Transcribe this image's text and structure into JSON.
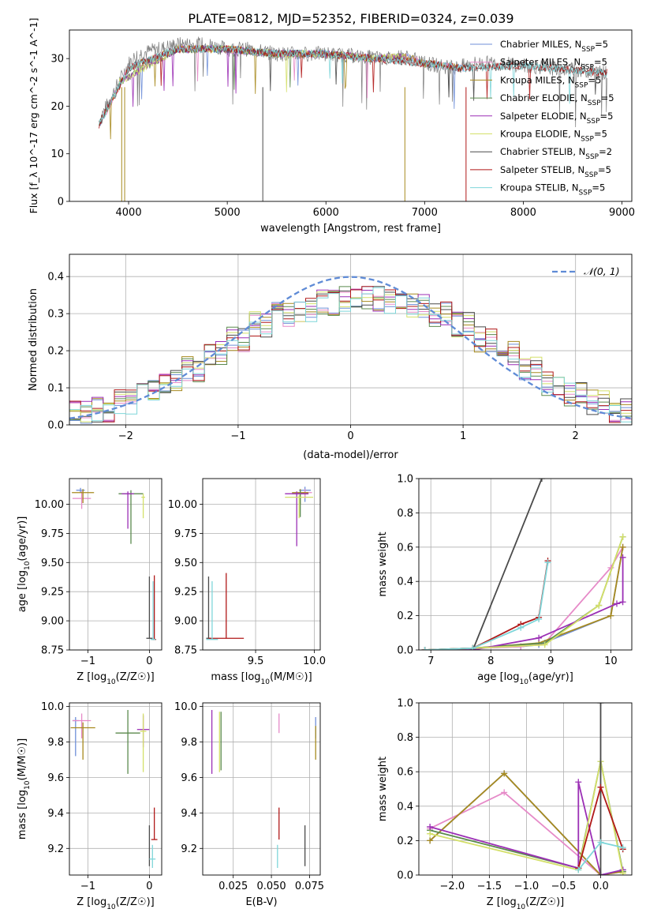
{
  "figure": {
    "title": "PLATE=0812, MJD=52352, FIBERID=0324, z=0.039"
  },
  "colors": [
    "#6f8fd8",
    "#e68ac8",
    "#a78a1e",
    "#5b8a4e",
    "#9b2fb5",
    "#d4e06a",
    "#4a4a4a",
    "#b01818",
    "#7fd6d9"
  ],
  "chart_data": [
    {
      "id": "spectrum",
      "type": "line",
      "title": "PLATE=0812, MJD=52352, FIBERID=0324, z=0.039",
      "xlabel": "wavelength [Angstrom, rest frame]",
      "ylabel": "Flux [f_λ 10^-17 erg cm^-2 s^-1 A^-1]",
      "xlim": [
        3400,
        9100
      ],
      "ylim": [
        0,
        36
      ],
      "xticks": [
        4000,
        5000,
        6000,
        7000,
        8000,
        9000
      ],
      "yticks": [
        0,
        10,
        20,
        30
      ],
      "grid": false,
      "legend_position": "top-right",
      "data_line": {
        "x": [
          3700,
          3800,
          3900,
          4000,
          4100,
          4300,
          4500,
          4800,
          5000,
          5200,
          5500,
          5800,
          6000,
          6300,
          6600,
          6800,
          7000,
          7300,
          7500,
          7800,
          8000,
          8300,
          8600,
          8850
        ],
        "y": [
          17,
          21,
          25,
          29,
          31,
          32,
          33,
          33,
          32,
          32,
          31,
          31,
          31,
          30.5,
          30,
          30.5,
          29,
          28,
          29,
          29,
          28.5,
          28,
          27.5,
          27
        ]
      },
      "series": [
        {
          "name": "Chabrier MILES, N_SSP=5",
          "legend_main": "Chabrier MILES, N",
          "legend_sub": "SSP",
          "legend_tail": "=5",
          "x": [
            3700,
            4000,
            4500,
            5000,
            5500,
            6000,
            6500,
            6800,
            7000,
            7400
          ],
          "y": [
            16,
            28,
            32,
            32,
            31,
            31,
            30,
            30.5,
            29,
            28
          ]
        },
        {
          "name": "Salpeter MILES, N_SSP=5",
          "legend_main": "Salpeter MILES, N",
          "legend_sub": "SSP",
          "legend_tail": "=5",
          "x": [
            3700,
            4000,
            4500,
            5000,
            5500,
            6000,
            6500,
            6800,
            7000,
            7400
          ],
          "y": [
            16,
            28,
            32,
            32,
            31,
            31,
            30,
            30.5,
            29,
            28
          ]
        },
        {
          "name": "Kroupa MILES, N_SSP=5",
          "legend_main": "Kroupa MILES, N",
          "legend_sub": "SSP",
          "legend_tail": "=5",
          "x": [
            3700,
            4000,
            4500,
            5000,
            5500,
            6000,
            6500,
            6800,
            7000,
            7400
          ],
          "y": [
            16,
            28,
            32,
            32,
            31,
            31,
            30,
            30.5,
            29,
            28
          ]
        },
        {
          "name": "Chabrier ELODIE, N_SSP=5",
          "legend_main": "Chabrier ELODIE, N",
          "legend_sub": "SSP",
          "legend_tail": "=5",
          "x": [
            3900,
            4500,
            5000,
            5500,
            6000,
            6500,
            6800
          ],
          "y": [
            25,
            32,
            32,
            31,
            31,
            30,
            30.5
          ]
        },
        {
          "name": "Salpeter ELODIE, N_SSP=5",
          "legend_main": "Salpeter ELODIE, N",
          "legend_sub": "SSP",
          "legend_tail": "=5",
          "x": [
            3900,
            4500,
            5000,
            5500,
            6000,
            6500,
            6800
          ],
          "y": [
            25,
            32,
            32,
            31,
            31,
            30,
            30.5
          ]
        },
        {
          "name": "Kroupa ELODIE, N_SSP=5",
          "legend_main": "Kroupa ELODIE, N",
          "legend_sub": "SSP",
          "legend_tail": "=5",
          "x": [
            3900,
            4500,
            5000,
            5500,
            6000,
            6500,
            6800
          ],
          "y": [
            25,
            32,
            32,
            31,
            31,
            30,
            30.5
          ]
        },
        {
          "name": "Chabrier STELIB, N_SSP=2",
          "legend_main": "Chabrier STELIB, N",
          "legend_sub": "SSP",
          "legend_tail": "=2",
          "x": [
            3700,
            4000,
            4500,
            5000,
            5500,
            6000,
            6500,
            7000,
            7400,
            8000,
            8850
          ],
          "y": [
            16,
            28,
            32,
            32,
            31,
            31,
            30,
            29,
            28,
            28.5,
            27
          ]
        },
        {
          "name": "Salpeter STELIB, N_SSP=5",
          "legend_main": "Salpeter STELIB, N",
          "legend_sub": "SSP",
          "legend_tail": "=5",
          "x": [
            3700,
            4000,
            4500,
            5000,
            5500,
            6000,
            6500,
            7000,
            7400,
            8000,
            8850
          ],
          "y": [
            16,
            28,
            32,
            32,
            31,
            31,
            30,
            29,
            28,
            28.5,
            27
          ]
        },
        {
          "name": "Kroupa STELIB, N_SSP=5",
          "legend_main": "Kroupa STELIB, N",
          "legend_sub": "SSP",
          "legend_tail": "=5",
          "x": [
            3700,
            4000,
            4500,
            5000,
            5500,
            6000,
            6500,
            7000,
            7400,
            8000,
            8850
          ],
          "y": [
            16,
            28,
            32,
            32,
            31,
            31,
            30,
            29,
            28,
            28.5,
            27
          ]
        }
      ]
    },
    {
      "id": "residuals",
      "type": "line",
      "xlabel": "(data-model)/error",
      "ylabel": "Normed distribution",
      "xlim": [
        -2.5,
        2.5
      ],
      "ylim": [
        0,
        0.46
      ],
      "xticks": [
        -2,
        -1,
        0,
        1,
        2
      ],
      "yticks": [
        0.0,
        0.1,
        0.2,
        0.3,
        0.4
      ],
      "grid": true,
      "legend_position": "top-right",
      "legend": "𝒩(0, 1)",
      "bins_x": [
        -2.5,
        -2.3,
        -2.1,
        -1.9,
        -1.7,
        -1.5,
        -1.3,
        -1.1,
        -0.9,
        -0.7,
        -0.5,
        -0.3,
        -0.1,
        0.1,
        0.3,
        0.5,
        0.7,
        0.9,
        1.1,
        1.3,
        1.5,
        1.7,
        1.9,
        2.1,
        2.3,
        2.5
      ],
      "hist_values": [
        0.03,
        0.04,
        0.06,
        0.09,
        0.12,
        0.15,
        0.19,
        0.23,
        0.27,
        0.3,
        0.31,
        0.33,
        0.34,
        0.34,
        0.33,
        0.32,
        0.3,
        0.27,
        0.23,
        0.19,
        0.15,
        0.11,
        0.08,
        0.06,
        0.04
      ],
      "gaussian": {
        "mu": 0,
        "sigma": 1
      }
    },
    {
      "id": "age_vs_Z",
      "type": "scatter",
      "xlabel": "Z [log10(Z/Z☉)]",
      "ylabel": "age  [log10(age/yr)]",
      "xlim": [
        -1.3,
        0.2
      ],
      "ylim": [
        8.75,
        10.22
      ],
      "xticks": [
        -1,
        0
      ],
      "yticks": [
        8.75,
        9.0,
        9.25,
        9.5,
        9.75,
        10.0
      ],
      "grid": true,
      "points": [
        {
          "x": -1.12,
          "y": 10.12,
          "xerr": 0.07,
          "yerr_lo": 0.02,
          "yerr_hi": 0.02
        },
        {
          "x": -1.1,
          "y": 10.05,
          "xerr": 0.15,
          "yerr_lo": 0.09,
          "yerr_hi": 0.06
        },
        {
          "x": -1.08,
          "y": 10.1,
          "xerr": 0.18,
          "yerr_lo": 0.09,
          "yerr_hi": 0.03
        },
        {
          "x": -0.3,
          "y": 10.09,
          "xerr": 0.2,
          "yerr_lo": 0.43,
          "yerr_hi": 0.03
        },
        {
          "x": -0.35,
          "y": 10.09,
          "xerr": 0.1,
          "yerr_lo": 0.3,
          "yerr_hi": 0.02
        },
        {
          "x": -0.1,
          "y": 10.06,
          "xerr": 0.03,
          "yerr_lo": 0.18,
          "yerr_hi": 0.03
        },
        {
          "x": 0.0,
          "y": 8.85,
          "xerr": 0.05,
          "yerr_lo": 0.0,
          "yerr_hi": 0.53
        },
        {
          "x": 0.08,
          "y": 8.84,
          "xerr": 0.03,
          "yerr_lo": 0.0,
          "yerr_hi": 0.55
        },
        {
          "x": 0.06,
          "y": 8.84,
          "xerr": 0.04,
          "yerr_lo": 0.0,
          "yerr_hi": 0.5
        }
      ]
    },
    {
      "id": "age_vs_mass",
      "type": "scatter",
      "xlabel": "mass [log10(M/M☉)]",
      "ylabel": "",
      "xlim": [
        9.05,
        10.05
      ],
      "ylim": [
        8.75,
        10.22
      ],
      "xticks": [
        9.5,
        10.0
      ],
      "yticks": [
        8.75,
        9.0,
        9.25,
        9.5,
        9.75,
        10.0
      ],
      "grid": true,
      "points": [
        {
          "x": 9.92,
          "y": 10.12,
          "xerr": 0.05,
          "yerr_lo": 0.1,
          "yerr_hi": 0.03
        },
        {
          "x": 9.92,
          "y": 10.1,
          "xerr": 0.06,
          "yerr_lo": 0.05,
          "yerr_hi": 0.03
        },
        {
          "x": 9.88,
          "y": 10.1,
          "xerr": 0.07,
          "yerr_lo": 0.1,
          "yerr_hi": 0.03
        },
        {
          "x": 9.88,
          "y": 10.09,
          "xerr": 0.07,
          "yerr_lo": 0.2,
          "yerr_hi": 0.03
        },
        {
          "x": 9.85,
          "y": 10.09,
          "xerr": 0.1,
          "yerr_lo": 0.45,
          "yerr_hi": 0.02
        },
        {
          "x": 9.87,
          "y": 10.06,
          "xerr": 0.12,
          "yerr_lo": 0.18,
          "yerr_hi": 0.02
        },
        {
          "x": 9.1,
          "y": 8.85,
          "xerr": 0.02,
          "yerr_lo": 0.0,
          "yerr_hi": 0.53
        },
        {
          "x": 9.25,
          "y": 8.85,
          "xerr": 0.15,
          "yerr_lo": 0.0,
          "yerr_hi": 0.56
        },
        {
          "x": 9.13,
          "y": 8.84,
          "xerr": 0.05,
          "yerr_lo": 0.0,
          "yerr_hi": 0.5
        }
      ]
    },
    {
      "id": "weight_vs_age",
      "type": "line",
      "xlabel": "age  [log10(age/yr)]",
      "ylabel": "mass weight",
      "xlim": [
        6.8,
        10.35
      ],
      "ylim": [
        0,
        1.0
      ],
      "xticks": [
        7,
        8,
        9,
        10
      ],
      "yticks": [
        0.0,
        0.2,
        0.4,
        0.6,
        0.8,
        1.0
      ],
      "grid": true,
      "series": [
        {
          "x": [
            6.9,
            7.7,
            8.5,
            8.8,
            10.0,
            10.2
          ],
          "y": [
            0.0,
            0.01,
            0.02,
            0.03,
            0.2,
            0.6
          ]
        },
        {
          "x": [
            6.9,
            7.7,
            8.5,
            8.9,
            10.0,
            10.2
          ],
          "y": [
            0.0,
            0.01,
            0.02,
            0.04,
            0.48,
            0.6
          ]
        },
        {
          "x": [
            6.9,
            7.7,
            8.8,
            10.0,
            10.2
          ],
          "y": [
            0.0,
            0.01,
            0.04,
            0.2,
            0.6
          ]
        },
        {
          "x": [
            6.9,
            7.7,
            8.9,
            9.8,
            10.2
          ],
          "y": [
            0.0,
            0.01,
            0.04,
            0.26,
            0.66
          ]
        },
        {
          "x": [
            6.9,
            7.7,
            8.8,
            10.1,
            10.2,
            10.2
          ],
          "y": [
            0.0,
            0.0,
            0.07,
            0.27,
            0.28,
            0.54
          ]
        },
        {
          "x": [
            6.9,
            7.7,
            8.9,
            9.8,
            10.2
          ],
          "y": [
            0.0,
            0.01,
            0.03,
            0.26,
            0.66
          ]
        },
        {
          "x": [
            7.7,
            8.85
          ],
          "y": [
            0.0,
            1.0
          ]
        },
        {
          "x": [
            6.9,
            7.7,
            8.5,
            8.8,
            8.95
          ],
          "y": [
            0.0,
            0.01,
            0.15,
            0.19,
            0.52
          ]
        },
        {
          "x": [
            6.9,
            7.7,
            8.5,
            8.8,
            8.95
          ],
          "y": [
            0.0,
            0.01,
            0.13,
            0.18,
            0.51
          ]
        }
      ]
    },
    {
      "id": "mass_vs_Z",
      "type": "scatter",
      "xlabel": "Z [log10(Z/Z☉)]",
      "ylabel": "mass [log10(M/M☉)]",
      "xlim": [
        -1.3,
        0.2
      ],
      "ylim": [
        9.05,
        10.02
      ],
      "xticks": [
        -1,
        0
      ],
      "yticks": [
        9.2,
        9.4,
        9.6,
        9.8,
        10.0
      ],
      "grid": true,
      "points": [
        {
          "x": -1.2,
          "y": 9.92,
          "xerr": 0.05,
          "yerr_lo": 0.2,
          "yerr_hi": 0.02
        },
        {
          "x": -1.1,
          "y": 9.92,
          "xerr": 0.15,
          "yerr_lo": 0.1,
          "yerr_hi": 0.04
        },
        {
          "x": -1.08,
          "y": 9.88,
          "xerr": 0.2,
          "yerr_lo": 0.18,
          "yerr_hi": 0.03
        },
        {
          "x": -0.35,
          "y": 9.85,
          "xerr": 0.2,
          "yerr_lo": 0.23,
          "yerr_hi": 0.13
        },
        {
          "x": -0.1,
          "y": 9.87,
          "xerr": 0.1,
          "yerr_lo": 0.1,
          "yerr_hi": 0.08
        },
        {
          "x": -0.1,
          "y": 9.86,
          "xerr": 0.05,
          "yerr_lo": 0.23,
          "yerr_hi": 0.1
        },
        {
          "x": 0.0,
          "y": 9.1,
          "xerr": 0.0,
          "yerr_lo": 0.0,
          "yerr_hi": 0.23
        },
        {
          "x": 0.08,
          "y": 9.25,
          "xerr": 0.05,
          "yerr_lo": 0.0,
          "yerr_hi": 0.18
        },
        {
          "x": 0.05,
          "y": 9.14,
          "xerr": 0.05,
          "yerr_lo": 0.05,
          "yerr_hi": 0.08
        }
      ]
    },
    {
      "id": "mass_vs_EBV",
      "type": "scatter",
      "xlabel": "E(B-V)",
      "ylabel": "",
      "xlim": [
        0.005,
        0.082
      ],
      "ylim": [
        9.05,
        10.02
      ],
      "xticks": [
        0.025,
        0.05,
        0.075
      ],
      "xtick_labels": [
        "0.025",
        "0.050",
        "0.075"
      ],
      "yticks": [
        9.2,
        9.4,
        9.6,
        9.8,
        10.0
      ],
      "grid": true,
      "points": [
        {
          "x": 0.079,
          "y": 9.92,
          "xerr": 0.0,
          "yerr_lo": 0.1,
          "yerr_hi": 0.02
        },
        {
          "x": 0.055,
          "y": 9.92,
          "xerr": 0.0,
          "yerr_lo": 0.07,
          "yerr_hi": 0.04
        },
        {
          "x": 0.079,
          "y": 9.85,
          "xerr": 0.0,
          "yerr_lo": 0.15,
          "yerr_hi": 0.04
        },
        {
          "x": 0.017,
          "y": 9.97,
          "xerr": 0.0,
          "yerr_lo": 0.33,
          "yerr_hi": 0.0
        },
        {
          "x": 0.011,
          "y": 9.85,
          "xerr": 0.0,
          "yerr_lo": 0.23,
          "yerr_hi": 0.13
        },
        {
          "x": 0.016,
          "y": 9.85,
          "xerr": 0.0,
          "yerr_lo": 0.22,
          "yerr_hi": 0.12
        },
        {
          "x": 0.072,
          "y": 9.1,
          "xerr": 0.0,
          "yerr_lo": 0.0,
          "yerr_hi": 0.23
        },
        {
          "x": 0.055,
          "y": 9.25,
          "xerr": 0.0,
          "yerr_lo": 0.0,
          "yerr_hi": 0.18
        },
        {
          "x": 0.054,
          "y": 9.14,
          "xerr": 0.0,
          "yerr_lo": 0.05,
          "yerr_hi": 0.08
        }
      ]
    },
    {
      "id": "weight_vs_Z",
      "type": "line",
      "xlabel": "Z [log10(Z/Z☉)]",
      "ylabel": "mass weight",
      "xlim": [
        -2.45,
        0.42
      ],
      "ylim": [
        0,
        1.0
      ],
      "xticks": [
        -2.0,
        -1.5,
        -1.0,
        -0.5,
        0.0
      ],
      "xtick_labels": [
        "−2.0",
        "−1.5",
        "−1.0",
        "−0.5",
        "0.0"
      ],
      "yticks": [
        0.0,
        0.2,
        0.4,
        0.6,
        0.8,
        1.0
      ],
      "grid": true,
      "series": [
        {
          "x": [
            -2.3,
            -1.3,
            0.0,
            0.3
          ],
          "y": [
            0.2,
            0.59,
            0.0,
            0.03
          ]
        },
        {
          "x": [
            -2.3,
            -1.3,
            0.0,
            0.3
          ],
          "y": [
            0.27,
            0.48,
            0.0,
            0.02
          ]
        },
        {
          "x": [
            -2.3,
            -1.3,
            0.0,
            0.3
          ],
          "y": [
            0.2,
            0.59,
            0.0,
            0.02
          ]
        },
        {
          "x": [
            -2.3,
            -0.3,
            0.0,
            0.3
          ],
          "y": [
            0.26,
            0.04,
            0.66,
            0.02
          ]
        },
        {
          "x": [
            -2.3,
            -0.3,
            -0.3,
            0.0,
            0.3
          ],
          "y": [
            0.28,
            0.04,
            0.54,
            0.0,
            0.03
          ]
        },
        {
          "x": [
            -2.3,
            -0.3,
            0.0,
            0.3
          ],
          "y": [
            0.24,
            0.03,
            0.66,
            0.01
          ]
        },
        {
          "x": [
            0.0,
            0.0
          ],
          "y": [
            0.0,
            1.0
          ]
        },
        {
          "x": [
            -0.3,
            0.0,
            0.3
          ],
          "y": [
            0.04,
            0.51,
            0.15
          ]
        },
        {
          "x": [
            -0.3,
            0.0,
            0.3
          ],
          "y": [
            0.03,
            0.19,
            0.16
          ]
        }
      ]
    }
  ]
}
